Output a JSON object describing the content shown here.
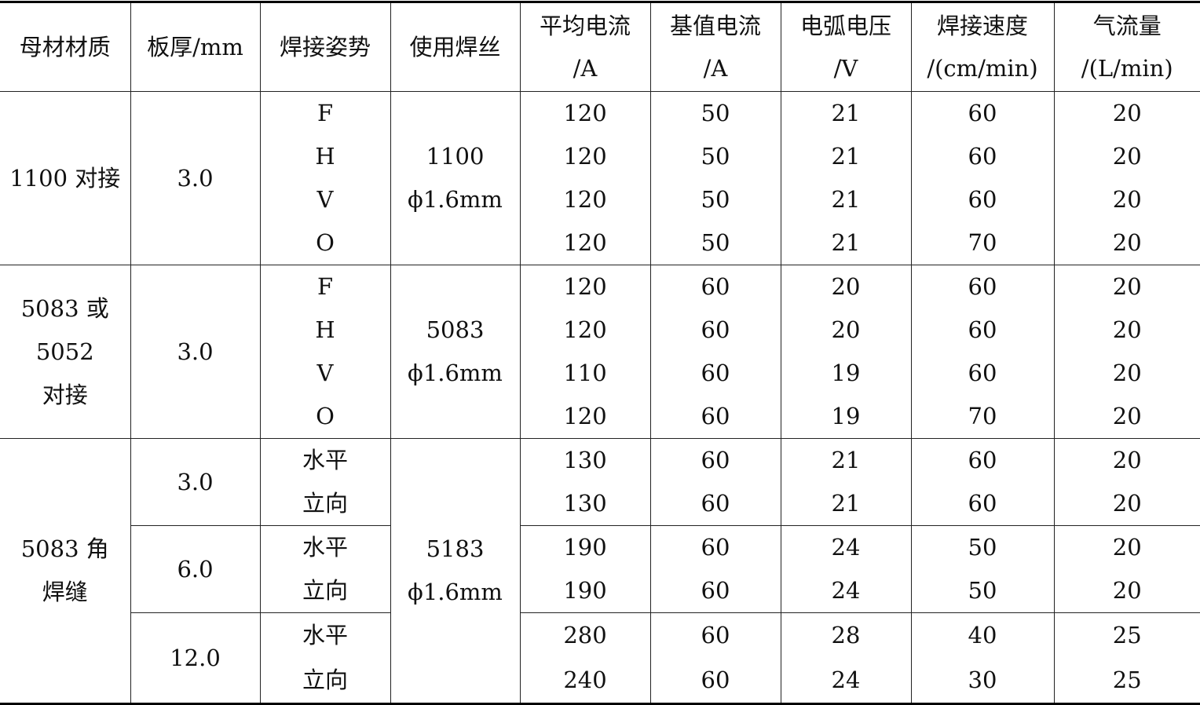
{
  "headers": [
    {
      "line1": "母材材质",
      "line2": ""
    },
    {
      "line1": "板厚/mm",
      "line2": ""
    },
    {
      "line1": "焊接姿势",
      "line2": ""
    },
    {
      "line1": "使用焊丝",
      "line2": ""
    },
    {
      "line1": "平均电流",
      "line2": "/A"
    },
    {
      "line1": "基值电流",
      "line2": "/A"
    },
    {
      "line1": "电弧电压",
      "line2": "/V"
    },
    {
      "line1": "焊接速度",
      "line2": "/(cm/min)"
    },
    {
      "line1": "气流量",
      "line2": "/(L/min)"
    }
  ],
  "groups": [
    {
      "material": "1100 对接",
      "wire": "1100\nϕ1.6mm",
      "thicknesses": [
        {
          "value": "3.0",
          "rows": [
            [
              "F",
              "120",
              "50",
              "21",
              "60",
              "20"
            ],
            [
              "H",
              "120",
              "50",
              "21",
              "60",
              "20"
            ],
            [
              "V",
              "120",
              "50",
              "21",
              "60",
              "20"
            ],
            [
              "O",
              "120",
              "50",
              "21",
              "70",
              "20"
            ]
          ]
        }
      ]
    },
    {
      "material": "5083 或\n5052\n对接",
      "wire": "5083\nϕ1.6mm",
      "thicknesses": [
        {
          "value": "3.0",
          "rows": [
            [
              "F",
              "120",
              "60",
              "20",
              "60",
              "20"
            ],
            [
              "H",
              "120",
              "60",
              "20",
              "60",
              "20"
            ],
            [
              "V",
              "110",
              "60",
              "19",
              "60",
              "20"
            ],
            [
              "O",
              "120",
              "60",
              "19",
              "70",
              "20"
            ]
          ]
        }
      ]
    },
    {
      "material": "5083 角\n焊缝",
      "wire": "5183\nϕ1.6mm",
      "thicknesses": [
        {
          "value": "3.0",
          "rows": [
            [
              "水平",
              "130",
              "60",
              "21",
              "60",
              "20"
            ],
            [
              "立向",
              "130",
              "60",
              "21",
              "60",
              "20"
            ]
          ]
        },
        {
          "value": "6.0",
          "rows": [
            [
              "水平",
              "190",
              "60",
              "24",
              "50",
              "20"
            ],
            [
              "立向",
              "190",
              "60",
              "24",
              "50",
              "20"
            ]
          ]
        },
        {
          "value": "12.0",
          "rows": [
            [
              "水平",
              "280",
              "60",
              "28",
              "40",
              "25"
            ],
            [
              "立向",
              "240",
              "60",
              "24",
              "30",
              "25"
            ]
          ]
        }
      ]
    }
  ]
}
